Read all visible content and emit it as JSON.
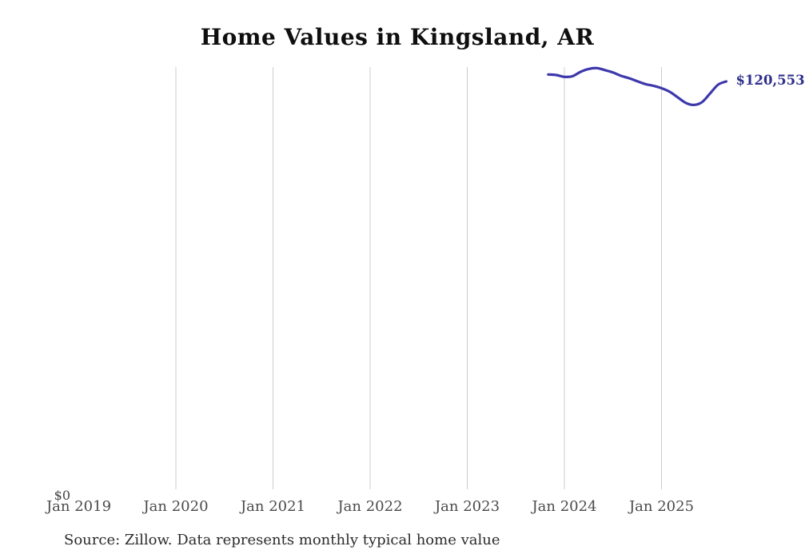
{
  "title": "Home Values in Kingsland, AR",
  "source_note": "Source: Zillow. Data represents monthly typical home value",
  "end_label": "$120,553",
  "y_axis": {
    "zero_label": "$0"
  },
  "x_axis": {
    "ticks": [
      "Jan 2019",
      "Jan 2020",
      "Jan 2021",
      "Jan 2022",
      "Jan 2023",
      "Jan 2024",
      "Jan 2025"
    ]
  },
  "colors": {
    "line": "#3d38ab",
    "end_label": "#2f2f8a",
    "gridline": "#cccccc",
    "title": "#0f0f0f",
    "axis_label": "#4a4a4a",
    "source": "#2b2b2b",
    "background": "#ffffff"
  },
  "chart_data": {
    "type": "line",
    "title": "Home Values in Kingsland, AR",
    "xlabel": "",
    "ylabel": "",
    "ylim": [
      0,
      125500
    ],
    "grid": "vertical-only",
    "legend": "none",
    "x_tick_labels": [
      "Jan 2019",
      "Jan 2020",
      "Jan 2021",
      "Jan 2022",
      "Jan 2023",
      "Jan 2024",
      "Jan 2025"
    ],
    "series_name": "Monthly typical home value (USD)",
    "x": [
      "2023-11",
      "2023-12",
      "2024-01",
      "2024-02",
      "2024-03",
      "2024-04",
      "2024-05",
      "2024-06",
      "2024-07",
      "2024-08",
      "2024-09",
      "2024-10",
      "2024-11",
      "2024-12",
      "2025-01",
      "2025-02",
      "2025-03",
      "2025-04",
      "2025-05",
      "2025-06",
      "2025-07",
      "2025-08",
      "2025-09"
    ],
    "values": [
      122600,
      122450,
      121900,
      122100,
      123400,
      124250,
      124500,
      123900,
      123200,
      122200,
      121500,
      120600,
      119750,
      119250,
      118550,
      117500,
      115850,
      114200,
      113600,
      114400,
      117000,
      119600,
      120553
    ]
  }
}
